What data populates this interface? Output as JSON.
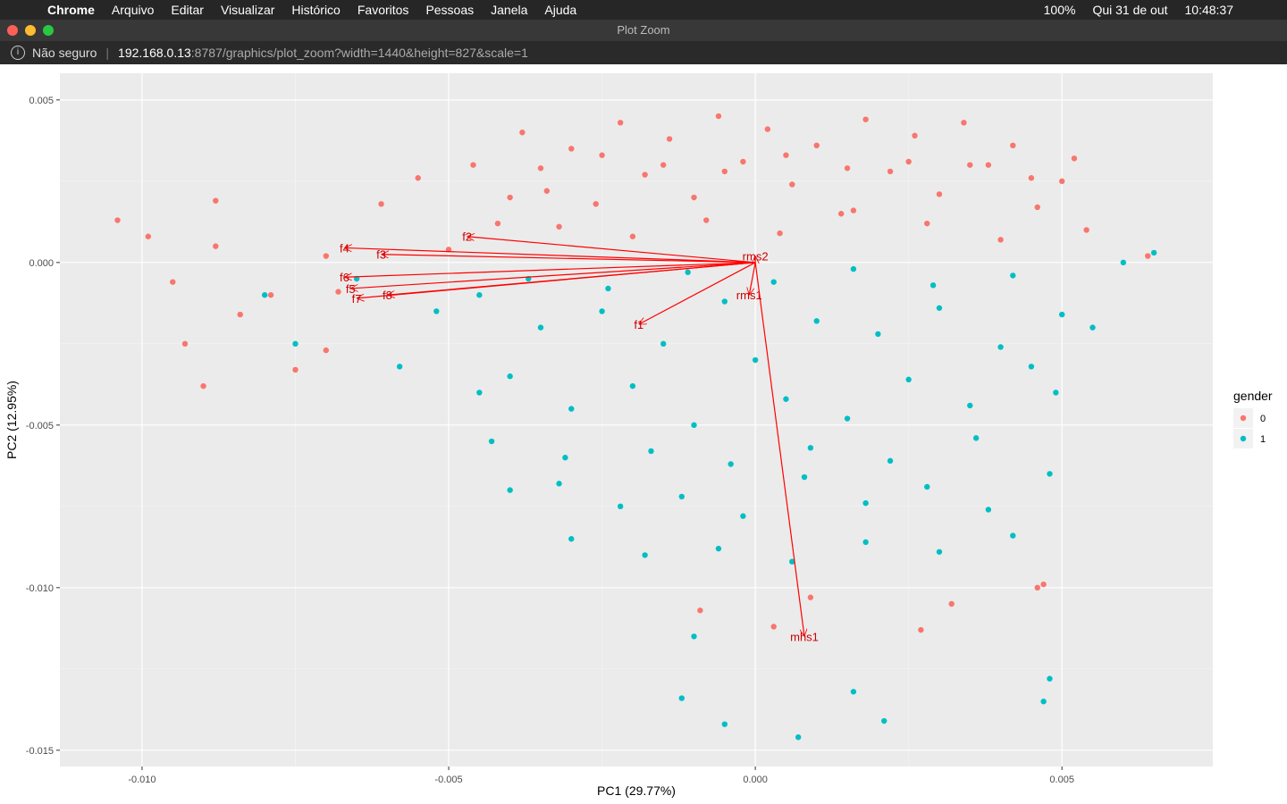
{
  "screen": {
    "menubar": {
      "app": "Chrome",
      "menus": [
        "Arquivo",
        "Editar",
        "Visualizar",
        "Histórico",
        "Favoritos",
        "Pessoas",
        "Janela",
        "Ajuda"
      ],
      "battery": "100%",
      "date": "Qui 31 de out",
      "time": "10:48:37"
    },
    "window_title": "Plot Zoom",
    "address": {
      "security": "Não seguro",
      "host": "192.168.0.13",
      "path": ":8787/graphics/plot_zoom?width=1440&height=827&scale=1"
    }
  },
  "chart_data": {
    "type": "scatter",
    "xlabel": "PC1 (29.77%)",
    "ylabel": "PC2 (12.95%)",
    "legend_title": "gender",
    "xlim": [
      -0.01134,
      0.00746
    ],
    "ylim": [
      -0.0155,
      0.00582
    ],
    "xticks": [
      {
        "value": -0.01,
        "label": "-0.010"
      },
      -0.005,
      {
        "value": 0,
        "label": "0.000"
      },
      0.005
    ],
    "yticks": [
      0.005,
      {
        "value": 0,
        "label": "0.000"
      },
      -0.005,
      {
        "value": -0.01,
        "label": "-0.010"
      },
      -0.015
    ],
    "grid": true,
    "series": [
      {
        "name": "0",
        "color": "#F8766D",
        "x": [
          -0.0104,
          -0.0099,
          -0.0095,
          -0.009,
          -0.0088,
          -0.0084,
          -0.0079,
          -0.0075,
          -0.007,
          -0.0068,
          -0.0061,
          -0.0055,
          -0.005,
          -0.0046,
          -0.0042,
          -0.0038,
          -0.0034,
          -0.003,
          -0.0026,
          -0.0022,
          -0.0018,
          -0.0014,
          -0.001,
          -0.0006,
          -0.0002,
          0.0002,
          0.0006,
          0.001,
          0.0014,
          0.0018,
          0.0022,
          0.0026,
          0.003,
          0.0034,
          0.0038,
          0.0042,
          0.0046,
          0.005,
          0.0054,
          0.0064,
          -0.004,
          -0.0032,
          -0.002,
          -0.0008,
          0.0004,
          0.0016,
          0.0028,
          0.004,
          0.0052,
          -0.0035,
          -0.0025,
          -0.0015,
          -0.0005,
          0.0005,
          0.0015,
          0.0025,
          0.0035,
          0.0045,
          -0.0009,
          0.0003,
          0.0009,
          0.0027,
          0.0032,
          0.0046,
          0.0047,
          -0.007,
          -0.0088,
          -0.0093
        ],
        "values": [
          0.0013,
          0.0008,
          -0.0006,
          -0.0038,
          0.0005,
          -0.0016,
          -0.001,
          -0.0033,
          0.0002,
          -0.0009,
          0.0018,
          0.0026,
          0.0004,
          0.003,
          0.0012,
          0.004,
          0.0022,
          0.0035,
          0.0018,
          0.0043,
          0.0027,
          0.0038,
          0.002,
          0.0045,
          0.0031,
          0.0041,
          0.0024,
          0.0036,
          0.0015,
          0.0044,
          0.0028,
          0.0039,
          0.0021,
          0.0043,
          0.003,
          0.0036,
          0.0017,
          0.0025,
          0.001,
          0.0002,
          0.002,
          0.0011,
          0.0008,
          0.0013,
          0.0009,
          0.0016,
          0.0012,
          0.0007,
          0.0032,
          0.0029,
          0.0033,
          0.003,
          0.0028,
          0.0033,
          0.0029,
          0.0031,
          0.003,
          0.0026,
          -0.0107,
          -0.0112,
          -0.0103,
          -0.0113,
          -0.0105,
          -0.01,
          -0.0099,
          -0.0027,
          0.0019,
          -0.0025
        ]
      },
      {
        "name": "1",
        "color": "#00BFC4",
        "x": [
          -0.0045,
          -0.004,
          -0.0035,
          -0.003,
          -0.0025,
          -0.002,
          -0.0015,
          -0.001,
          -0.0005,
          0.0,
          0.0005,
          0.001,
          0.0015,
          0.002,
          0.0025,
          0.003,
          0.0035,
          0.004,
          0.0045,
          0.005,
          -0.0043,
          -0.0037,
          -0.0031,
          -0.0024,
          -0.0017,
          -0.0011,
          -0.0004,
          0.0003,
          0.0009,
          0.0016,
          0.0022,
          0.0029,
          0.0036,
          0.0042,
          0.0049,
          0.0055,
          0.006,
          -0.004,
          -0.0032,
          -0.0022,
          -0.0012,
          -0.0002,
          0.0008,
          0.0018,
          0.0028,
          0.0038,
          0.0048,
          -0.003,
          -0.0018,
          -0.0006,
          0.0006,
          0.0018,
          0.003,
          0.0042,
          -0.0075,
          -0.0065,
          -0.0058,
          -0.0052,
          -0.008,
          -0.0045,
          -0.0012,
          -0.0005,
          0.0007,
          0.0016,
          0.0021,
          0.0047,
          0.0048,
          -0.001,
          0.0065
        ],
        "values": [
          -0.001,
          -0.0035,
          -0.002,
          -0.0045,
          -0.0015,
          -0.0038,
          -0.0025,
          -0.005,
          -0.0012,
          -0.003,
          -0.0042,
          -0.0018,
          -0.0048,
          -0.0022,
          -0.0036,
          -0.0014,
          -0.0044,
          -0.0026,
          -0.0032,
          -0.0016,
          -0.0055,
          -0.0005,
          -0.006,
          -0.0008,
          -0.0058,
          -0.0003,
          -0.0062,
          -0.0006,
          -0.0057,
          -0.0002,
          -0.0061,
          -0.0007,
          -0.0054,
          -0.0004,
          -0.004,
          -0.002,
          0.0,
          -0.007,
          -0.0068,
          -0.0075,
          -0.0072,
          -0.0078,
          -0.0066,
          -0.0074,
          -0.0069,
          -0.0076,
          -0.0065,
          -0.0085,
          -0.009,
          -0.0088,
          -0.0092,
          -0.0086,
          -0.0089,
          -0.0084,
          -0.0025,
          -0.0005,
          -0.0032,
          -0.0015,
          -0.001,
          -0.004,
          -0.0134,
          -0.0142,
          -0.0146,
          -0.0132,
          -0.0141,
          -0.0135,
          -0.0128,
          -0.0115,
          0.0003
        ]
      }
    ],
    "loadings": {
      "color": "#ff0000",
      "labels": [
        "f2",
        "f4",
        "f3",
        "f6",
        "f5",
        "f7",
        "f8",
        "f1",
        "rms1",
        "rms2",
        "mhs1"
      ],
      "x": [
        -0.0047,
        -0.0067,
        -0.0061,
        -0.0067,
        -0.0066,
        -0.0065,
        -0.006,
        -0.0019,
        -0.0001,
        0.0,
        0.0008
      ],
      "values": [
        0.0008,
        0.00045,
        0.00025,
        -0.00045,
        -0.0008,
        -0.0011,
        -0.001,
        -0.0019,
        -0.001,
        0.0002,
        -0.0115
      ]
    }
  }
}
